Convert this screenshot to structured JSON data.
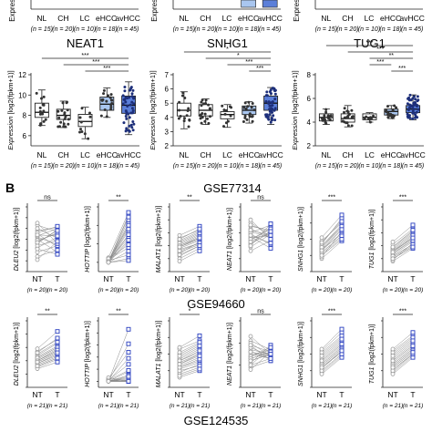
{
  "colors": {
    "grey_fill": "#e6e6e6",
    "light_blue": "#a9c6ef",
    "mid_blue": "#5b7fd9",
    "dark_blue": "#2e49c8",
    "paired_nt": "#9a9a9a",
    "paired_t": "#2a3fbf"
  },
  "figure": {
    "panel_b_label": "B",
    "dataset_titles": [
      "GSE77314",
      "GSE94660",
      "GSE124535"
    ]
  },
  "chart_data": [
    {
      "type": "box",
      "title": "",
      "ylabel": "Expression",
      "ylabel_unit": "[log2(fpkm+1)]",
      "categories": [
        "NL",
        "CH",
        "LC",
        "eHCC",
        "avHCC"
      ],
      "n_labels": [
        "(n = 15)",
        "(n = 20)",
        "(n = 10)",
        "(n = 18)",
        "(n = 45)"
      ],
      "cropped_top": true,
      "yticks": [],
      "sig": []
    },
    {
      "type": "box",
      "title": "",
      "ylabel": "Expression",
      "ylabel_unit": "[log2(fpkm+1)]",
      "categories": [
        "NL",
        "CH",
        "LC",
        "eHCC",
        "avHCC"
      ],
      "n_labels": [
        "(n = 15)",
        "(n = 20)",
        "(n = 10)",
        "(n = 18)",
        "(n = 45)"
      ],
      "cropped_top": true,
      "yticks": [],
      "sig": []
    },
    {
      "type": "box",
      "title": "",
      "ylabel": "Expression",
      "ylabel_unit": "[log2(fpkm+1)]",
      "categories": [
        "NL",
        "CH",
        "LC",
        "eHCC",
        "avHCC"
      ],
      "n_labels": [
        "(n = 15)",
        "(n = 20)",
        "(n = 10)",
        "(n = 18)",
        "(n = 45)"
      ],
      "cropped_top": true,
      "yticks": [],
      "sig": []
    },
    {
      "type": "box",
      "title": "NEAT1",
      "ylabel": "Expression",
      "ylabel_unit": "[log2(fpkm+1)]",
      "categories": [
        "NL",
        "CH",
        "LC",
        "eHCC",
        "avHCC"
      ],
      "n_labels": [
        "(n = 15)",
        "(n = 20)",
        "(n = 10)",
        "(n = 18)",
        "(n = 45)"
      ],
      "ylim": [
        5,
        12
      ],
      "yticks": [
        6,
        8,
        10,
        12
      ],
      "boxes": [
        {
          "min": 7.0,
          "q1": 7.8,
          "median": 8.3,
          "q3": 9.2,
          "max": 10.5
        },
        {
          "min": 6.8,
          "q1": 7.6,
          "median": 8.0,
          "q3": 8.6,
          "max": 9.4
        },
        {
          "min": 5.7,
          "q1": 6.9,
          "median": 7.4,
          "q3": 8.1,
          "max": 8.8
        },
        {
          "min": 7.8,
          "q1": 8.5,
          "median": 9.1,
          "q3": 9.8,
          "max": 10.7
        },
        {
          "min": 6.1,
          "q1": 8.2,
          "median": 9.0,
          "q3": 9.9,
          "max": 11.3
        }
      ],
      "sig": [
        {
          "from": 0,
          "to": 4,
          "label": "***"
        },
        {
          "from": 1,
          "to": 4,
          "label": "***"
        },
        {
          "from": 2,
          "to": 4,
          "label": "***"
        }
      ]
    },
    {
      "type": "box",
      "title": "SNHG1",
      "ylabel": "Expression",
      "ylabel_unit": "[log2(fpkm+1)]",
      "categories": [
        "NL",
        "CH",
        "LC",
        "eHCC",
        "avHCC"
      ],
      "n_labels": [
        "(n = 15)",
        "(n = 20)",
        "(n = 10)",
        "(n = 18)",
        "(n = 45)"
      ],
      "ylim": [
        2,
        7
      ],
      "yticks": [
        2,
        3,
        4,
        5,
        6,
        7
      ],
      "boxes": [
        {
          "min": 3.2,
          "q1": 4.1,
          "median": 4.5,
          "q3": 5.0,
          "max": 5.8
        },
        {
          "min": 3.5,
          "q1": 4.1,
          "median": 4.5,
          "q3": 4.9,
          "max": 5.3
        },
        {
          "min": 3.3,
          "q1": 3.9,
          "median": 4.2,
          "q3": 4.4,
          "max": 4.9
        },
        {
          "min": 3.6,
          "q1": 4.2,
          "median": 4.5,
          "q3": 4.8,
          "max": 5.1
        },
        {
          "min": 3.5,
          "q1": 4.5,
          "median": 5.0,
          "q3": 5.5,
          "max": 6.1
        }
      ],
      "sig": [
        {
          "from": 0,
          "to": 4,
          "label": "*"
        },
        {
          "from": 1,
          "to": 4,
          "label": "*"
        },
        {
          "from": 2,
          "to": 4,
          "label": "***"
        },
        {
          "from": 3,
          "to": 4,
          "label": "***"
        }
      ]
    },
    {
      "type": "box",
      "title": "TUG1",
      "ylabel": "Expression",
      "ylabel_unit": "[log2(fpkm+1)]",
      "categories": [
        "NL",
        "CH",
        "LC",
        "eHCC",
        "avHCC"
      ],
      "n_labels": [
        "(n = 15)",
        "(n = 20)",
        "(n = 10)",
        "(n = 18)",
        "(n = 45)"
      ],
      "ylim": [
        2,
        8
      ],
      "yticks": [
        2,
        4,
        6,
        8
      ],
      "boxes": [
        {
          "min": 3.8,
          "q1": 4.1,
          "median": 4.4,
          "q3": 4.7,
          "max": 5.1
        },
        {
          "min": 3.6,
          "q1": 4.0,
          "median": 4.3,
          "q3": 4.7,
          "max": 5.4
        },
        {
          "min": 4.0,
          "q1": 4.2,
          "median": 4.4,
          "q3": 4.7,
          "max": 4.8
        },
        {
          "min": 4.3,
          "q1": 4.6,
          "median": 4.9,
          "q3": 5.1,
          "max": 5.4
        },
        {
          "min": 4.2,
          "q1": 4.8,
          "median": 5.1,
          "q3": 5.4,
          "max": 6.3
        }
      ],
      "sig": [
        {
          "from": 0,
          "to": 4,
          "label": "***"
        },
        {
          "from": 1,
          "to": 4,
          "label": "***"
        },
        {
          "from": 2,
          "to": 4,
          "label": "**"
        },
        {
          "from": 2,
          "to": 3,
          "label": "***"
        },
        {
          "from": 3,
          "to": 4,
          "label": "***"
        }
      ]
    },
    {
      "type": "paired",
      "dataset": "GSE77314",
      "gene": "DLEU2",
      "ylabel_unit": "[log2(fpkm+1)]",
      "categories": [
        "NT",
        "T"
      ],
      "n_labels": [
        "(n = 20)",
        "(n = 20)"
      ],
      "sig": "ns",
      "ylim": [
        8,
        14
      ],
      "yticks": [
        8,
        9,
        10,
        11,
        12,
        13,
        14
      ],
      "nt": [
        11.8,
        11.2,
        10.8,
        11.5,
        10.2,
        12.3,
        11.0,
        10.6,
        9.8,
        11.3,
        12.0,
        10.4,
        11.6,
        9.4,
        10.9,
        12.5,
        10.1,
        11.4,
        9.1,
        10.7
      ],
      "t": [
        12.1,
        10.5,
        11.6,
        10.3,
        11.2,
        11.7,
        9.8,
        11.9,
        10.4,
        12.0,
        11.1,
        10.9,
        12.2,
        10.0,
        11.5,
        10.6,
        9.6,
        11.3,
        10.8,
        11.8
      ]
    },
    {
      "type": "paired",
      "dataset": "GSE77314",
      "gene": "HOTTIP",
      "ylabel_unit": "[log2(fpkm+1)]",
      "categories": [
        "NT",
        "T"
      ],
      "n_labels": [
        "(n = 20)",
        "(n = 20)"
      ],
      "sig": "**",
      "ylim": [
        -1,
        6
      ],
      "yticks": [
        0,
        2,
        4,
        6
      ],
      "nt": [
        0.1,
        0,
        0.2,
        0,
        0.1,
        0.3,
        0,
        0.2,
        0,
        0.1,
        0.5,
        0,
        0.1,
        0,
        0.2,
        0,
        0.4,
        0.1,
        0,
        0
      ],
      "t": [
        5.1,
        4.6,
        3.8,
        2.9,
        4.2,
        1.6,
        3.4,
        0.8,
        2.2,
        4.9,
        5.4,
        1.2,
        3.0,
        0.4,
        2.6,
        4.0,
        1.9,
        3.6,
        0.2,
        2.4
      ]
    },
    {
      "type": "paired",
      "dataset": "GSE77314",
      "gene": "MALAT1",
      "ylabel_unit": "[log2(fpkm+1)]",
      "categories": [
        "NT",
        "T"
      ],
      "n_labels": [
        "(n = 20)",
        "(n = 20)"
      ],
      "sig": "**",
      "ylim": [
        14,
        19
      ],
      "yticks": [
        14,
        15,
        16,
        17,
        18,
        19
      ],
      "nt": [
        16.0,
        15.7,
        16.3,
        15.5,
        16.6,
        15.9,
        15.2,
        16.1,
        15.8,
        16.4,
        15.4,
        15.0,
        16.2,
        15.6,
        16.8,
        15.3,
        16.0,
        15.9,
        14.8,
        16.5
      ],
      "t": [
        16.6,
        16.2,
        17.0,
        16.1,
        17.2,
        16.5,
        16.0,
        16.8,
        16.4,
        17.1,
        16.3,
        15.8,
        16.9,
        16.2,
        17.5,
        16.0,
        16.7,
        16.6,
        15.6,
        17.3
      ]
    },
    {
      "type": "paired",
      "dataset": "GSE77314",
      "gene": "NEAT1",
      "ylabel_unit": "[log2(fpkm+1)]",
      "categories": [
        "NT",
        "T"
      ],
      "n_labels": [
        "(n = 20)",
        "(n = 20)"
      ],
      "sig": "ns",
      "ylim": [
        12,
        17
      ],
      "yticks": [
        12,
        13,
        14,
        15,
        16,
        17
      ],
      "nt": [
        14.6,
        15.1,
        14.2,
        15.5,
        14.9,
        13.9,
        15.3,
        14.4,
        15.8,
        14.1,
        14.7,
        15.0,
        13.6,
        15.6,
        14.5,
        14.8,
        15.2,
        14.0,
        16.0,
        14.3
      ],
      "t": [
        14.8,
        14.6,
        15.0,
        15.2,
        14.1,
        14.9,
        14.6,
        15.4,
        14.7,
        15.1,
        13.8,
        15.6,
        14.4,
        15.0,
        15.3,
        14.2,
        14.8,
        15.7,
        14.5,
        15.1
      ]
    },
    {
      "type": "paired",
      "dataset": "GSE77314",
      "gene": "SNHG1",
      "ylabel_unit": "[log2(fpkm+1)]",
      "categories": [
        "NT",
        "T"
      ],
      "n_labels": [
        "(n = 20)",
        "(n = 20)"
      ],
      "sig": "***",
      "ylim": [
        6,
        10
      ],
      "yticks": [
        6,
        7,
        8,
        9,
        10
      ],
      "nt": [
        7.6,
        7.2,
        7.8,
        7.0,
        7.4,
        7.9,
        6.8,
        7.5,
        7.3,
        7.7,
        7.1,
        6.9,
        7.6,
        7.4,
        8.1,
        7.2,
        7.5,
        7.0,
        7.8,
        7.3
      ],
      "t": [
        8.8,
        8.2,
        9.2,
        8.0,
        8.6,
        9.0,
        7.9,
        8.7,
        8.4,
        9.3,
        8.1,
        8.5,
        8.9,
        8.3,
        9.5,
        8.2,
        8.8,
        8.0,
        9.1,
        8.6
      ]
    },
    {
      "type": "paired",
      "dataset": "GSE77314",
      "gene": "TUG1",
      "ylabel_unit": "[log2(fpkm+1)]",
      "categories": [
        "NT",
        "T"
      ],
      "n_labels": [
        "(n = 20)",
        "(n = 20)"
      ],
      "sig": "***",
      "ylim": [
        5,
        10
      ],
      "yticks": [
        5,
        6,
        7,
        8,
        9,
        10
      ],
      "nt": [
        6.6,
        6.2,
        6.9,
        6.0,
        6.4,
        7.1,
        5.8,
        6.5,
        6.3,
        6.8,
        6.1,
        5.9,
        6.7,
        6.4,
        7.3,
        6.2,
        6.6,
        6.0,
        6.9,
        6.5
      ],
      "t": [
        7.6,
        7.1,
        8.1,
        6.9,
        7.5,
        8.3,
        6.8,
        7.7,
        7.3,
        8.0,
        7.0,
        7.2,
        7.9,
        7.4,
        8.6,
        7.1,
        7.8,
        6.9,
        8.2,
        7.6
      ]
    },
    {
      "type": "paired",
      "dataset": "GSE94660",
      "gene": "DLEU2",
      "ylabel_unit": "[log2(fpkm+1)]",
      "categories": [
        "NT",
        "T"
      ],
      "n_labels": [
        "(n = 21)",
        "(n = 21)"
      ],
      "sig": "**",
      "ylim": [
        0,
        5
      ],
      "yticks": [
        0,
        1,
        2,
        3,
        4,
        5
      ],
      "nt": [
        2.1,
        1.8,
        2.4,
        1.6,
        2.0,
        2.7,
        1.5,
        2.2,
        1.9,
        2.5,
        1.7,
        2.3,
        1.4,
        2.6,
        2.0,
        1.8,
        2.9,
        1.6,
        2.2,
        2.0,
        1.9
      ],
      "t": [
        2.9,
        2.4,
        3.3,
        2.2,
        2.8,
        3.6,
        2.1,
        3.0,
        2.6,
        3.4,
        2.3,
        3.1,
        1.9,
        3.7,
        2.7,
        2.5,
        4.2,
        2.2,
        3.0,
        2.8,
        2.6
      ]
    },
    {
      "type": "paired",
      "dataset": "GSE94660",
      "gene": "HOTTIP",
      "ylabel_unit": "[log2(fpkm+1)]",
      "categories": [
        "NT",
        "T"
      ],
      "n_labels": [
        "(n = 21)",
        "(n = 21)"
      ],
      "sig": "**",
      "ylim": [
        -0.5,
        5
      ],
      "yticks": [
        0,
        1,
        2,
        3,
        4,
        5
      ],
      "nt": [
        0,
        0,
        0.1,
        0,
        0,
        0.2,
        0,
        0,
        0.1,
        0,
        0,
        0,
        0.1,
        0,
        0,
        0.3,
        0,
        0,
        0.1,
        0,
        0
      ],
      "t": [
        0.2,
        0,
        1.4,
        0,
        0.3,
        2.4,
        0,
        0.8,
        0,
        3.1,
        0,
        0.5,
        0,
        1.9,
        0.1,
        0,
        4.3,
        0,
        0.9,
        0,
        0.4
      ]
    },
    {
      "type": "paired",
      "dataset": "GSE94660",
      "gene": "MALAT1",
      "ylabel_unit": "[log2(fpkm+1)]",
      "categories": [
        "NT",
        "T"
      ],
      "n_labels": [
        "(n = 21)",
        "(n = 21)"
      ],
      "sig": "*",
      "ylim": [
        6,
        10
      ],
      "yticks": [
        6,
        7,
        8,
        9,
        10
      ],
      "nt": [
        7.6,
        7.1,
        8.0,
        6.8,
        7.4,
        8.3,
        6.6,
        7.7,
        7.2,
        8.1,
        6.9,
        7.5,
        7.0,
        8.4,
        7.3,
        7.8,
        6.7,
        7.9,
        7.2,
        7.6,
        7.4
      ],
      "t": [
        8.1,
        7.5,
        8.6,
        7.2,
        8.0,
        8.8,
        7.0,
        8.3,
        7.6,
        8.7,
        7.4,
        8.0,
        7.3,
        9.1,
        7.8,
        8.4,
        7.1,
        8.5,
        7.7,
        8.2,
        7.9
      ]
    },
    {
      "type": "paired",
      "dataset": "GSE94660",
      "gene": "NEAT1",
      "ylabel_unit": "[log2(fpkm+1)]",
      "categories": [
        "NT",
        "T"
      ],
      "n_labels": [
        "(n = 21)",
        "(n = 21)"
      ],
      "sig": "ns",
      "ylim": [
        4,
        7
      ],
      "yticks": [
        4,
        5,
        6,
        7
      ],
      "nt": [
        5.6,
        5.2,
        5.9,
        5.0,
        5.4,
        6.1,
        4.9,
        5.7,
        5.3,
        6.0,
        5.1,
        5.5,
        4.8,
        6.3,
        5.4,
        5.8,
        5.0,
        5.9,
        5.3,
        5.6,
        5.2
      ],
      "t": [
        5.4,
        5.5,
        5.6,
        5.3,
        5.8,
        5.7,
        5.2,
        5.5,
        5.6,
        5.4,
        5.9,
        5.3,
        5.6,
        5.5,
        5.7,
        5.4,
        5.8,
        5.2,
        5.6,
        5.3,
        5.5
      ]
    },
    {
      "type": "paired",
      "dataset": "GSE94660",
      "gene": "SNHG1",
      "ylabel_unit": "[log2(fpkm+1)]",
      "categories": [
        "NT",
        "T"
      ],
      "n_labels": [
        "(n = 21)",
        "(n = 21)"
      ],
      "sig": "***",
      "ylim": [
        1,
        5
      ],
      "yticks": [
        1,
        2,
        3,
        4,
        5
      ],
      "nt": [
        2.6,
        2.2,
        3.0,
        2.0,
        2.4,
        3.2,
        1.9,
        2.7,
        2.3,
        3.1,
        2.1,
        2.5,
        1.8,
        3.3,
        2.4,
        2.8,
        2.0,
        2.9,
        2.3,
        2.6,
        2.2
      ],
      "t": [
        3.6,
        3.1,
        4.0,
        3.0,
        3.4,
        4.3,
        2.9,
        3.7,
        3.3,
        4.1,
        3.2,
        3.5,
        2.8,
        4.5,
        3.4,
        3.8,
        3.0,
        3.9,
        3.3,
        3.6,
        3.2
      ]
    },
    {
      "type": "paired",
      "dataset": "GSE94660",
      "gene": "TUG1",
      "ylabel_unit": "[log2(fpkm+1)]",
      "categories": [
        "NT",
        "T"
      ],
      "n_labels": [
        "(n = 21)",
        "(n = 21)"
      ],
      "sig": "***",
      "ylim": [
        3,
        7
      ],
      "yticks": [
        3,
        4,
        5,
        6,
        7
      ],
      "nt": [
        4.6,
        4.2,
        5.0,
        4.0,
        4.4,
        5.2,
        3.9,
        4.7,
        4.3,
        5.1,
        4.1,
        4.5,
        3.8,
        5.3,
        4.4,
        4.8,
        4.0,
        4.9,
        4.3,
        4.6,
        4.2
      ],
      "t": [
        5.5,
        5.1,
        5.9,
        5.0,
        5.3,
        6.1,
        4.9,
        5.6,
        5.2,
        6.0,
        5.0,
        5.4,
        4.8,
        6.3,
        5.3,
        5.7,
        5.0,
        5.8,
        5.2,
        5.5,
        5.1
      ]
    }
  ]
}
